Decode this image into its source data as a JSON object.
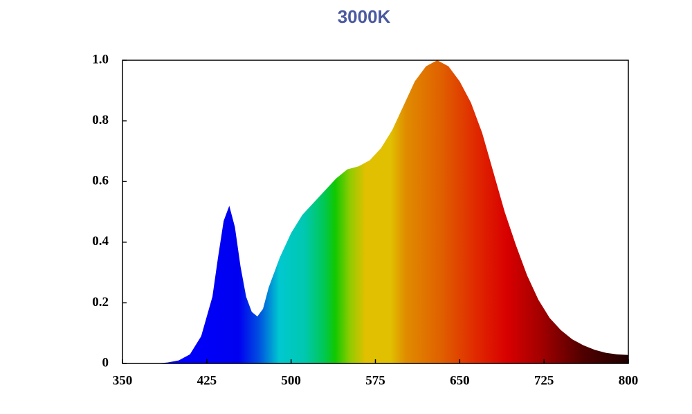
{
  "chart_data": {
    "type": "area",
    "title": "3000K",
    "x": [
      380,
      390,
      400,
      410,
      420,
      430,
      435,
      440,
      445,
      450,
      455,
      460,
      465,
      470,
      475,
      480,
      490,
      500,
      510,
      520,
      530,
      540,
      550,
      560,
      570,
      580,
      590,
      600,
      610,
      620,
      630,
      640,
      650,
      660,
      670,
      680,
      690,
      700,
      710,
      720,
      730,
      740,
      750,
      760,
      770,
      780,
      790,
      800
    ],
    "values": [
      0,
      0.003,
      0.01,
      0.03,
      0.09,
      0.22,
      0.35,
      0.47,
      0.52,
      0.45,
      0.32,
      0.22,
      0.17,
      0.155,
      0.18,
      0.25,
      0.35,
      0.43,
      0.49,
      0.53,
      0.57,
      0.61,
      0.64,
      0.65,
      0.67,
      0.71,
      0.77,
      0.85,
      0.93,
      0.98,
      1.0,
      0.98,
      0.93,
      0.86,
      0.76,
      0.63,
      0.5,
      0.39,
      0.29,
      0.21,
      0.15,
      0.11,
      0.08,
      0.06,
      0.045,
      0.035,
      0.03,
      0.028
    ],
    "xlim": [
      350,
      800
    ],
    "xticks": [
      350,
      425,
      500,
      575,
      650,
      725,
      800
    ],
    "ylim": [
      0,
      1
    ],
    "yticks": [
      0,
      0.2,
      0.4,
      0.6,
      0.8,
      {
        "value": 1,
        "label": "1.0"
      }
    ],
    "grid": false
  }
}
